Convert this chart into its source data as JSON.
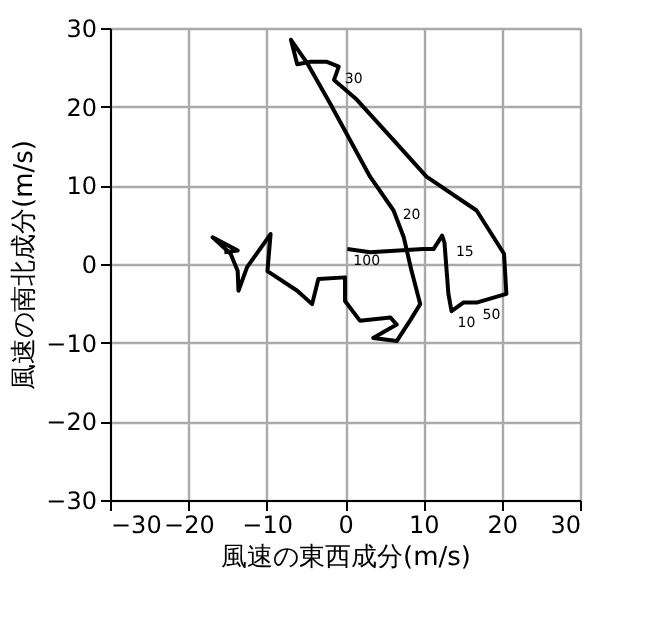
{
  "chart_data": {
    "type": "line",
    "xlabel": "風速の東西成分(m/s)",
    "ylabel": "風速の南北成分(m/s)",
    "xlim": [
      -30,
      30
    ],
    "ylim": [
      -30,
      30
    ],
    "xticks": [
      -30,
      -20,
      -10,
      0,
      10,
      20,
      30
    ],
    "yticks": [
      -30,
      -20,
      -10,
      0,
      10,
      20,
      30
    ],
    "grid": true,
    "series": [
      {
        "color": "#000000",
        "x": [
          0.3,
          3.2,
          10.0,
          11.3,
          12.4,
          12.7,
          13.2,
          13.6,
          15.1,
          16.8,
          20.6,
          20.3,
          16.8,
          10.4,
          6.6,
          1.5,
          -1.4,
          -0.8,
          -2.3,
          -4.4,
          -6.1,
          -6.9,
          -4.8,
          -1.9,
          3.2,
          6.2,
          7.5,
          8.5,
          9.6,
          8.3,
          6.6,
          3.6,
          6.6,
          5.8,
          1.9,
          0,
          0,
          -3.4,
          -4.2,
          -6.1,
          -9.9,
          -9.5,
          -12.5,
          -13.6,
          -13.7,
          -14.6,
          -16.9,
          -13.7,
          -15.4
        ],
        "values": [
          1.9,
          1.5,
          1.9,
          1.9,
          3.6,
          2.7,
          -3.8,
          -6.0,
          -4.9,
          -4.9,
          -3.8,
          1.3,
          6.8,
          11.1,
          15.3,
          20.9,
          23.4,
          25.1,
          25.7,
          25.7,
          25.4,
          28.5,
          25.5,
          20.4,
          11.1,
          6.8,
          3.4,
          -0.9,
          -5.1,
          -7.2,
          -9.8,
          -9.4,
          -7.7,
          -6.8,
          -7.2,
          -4.7,
          -1.7,
          -1.9,
          -5.1,
          -3.4,
          -0.9,
          3.8,
          -0.4,
          -3.4,
          -0.9,
          1.3,
          3.4,
          1.7,
          1.5
        ]
      }
    ],
    "annotations": [
      {
        "text": "30",
        "x": -0.8,
        "y": 25.1
      },
      {
        "text": "20",
        "x": 6.6,
        "y": 7.8
      },
      {
        "text": "100",
        "x": 0.3,
        "y": 1.9
      },
      {
        "text": "15",
        "x": 13.4,
        "y": 3.0
      },
      {
        "text": "10",
        "x": 13.6,
        "y": -6.0
      },
      {
        "text": "50",
        "x": 16.8,
        "y": -4.9
      }
    ]
  }
}
